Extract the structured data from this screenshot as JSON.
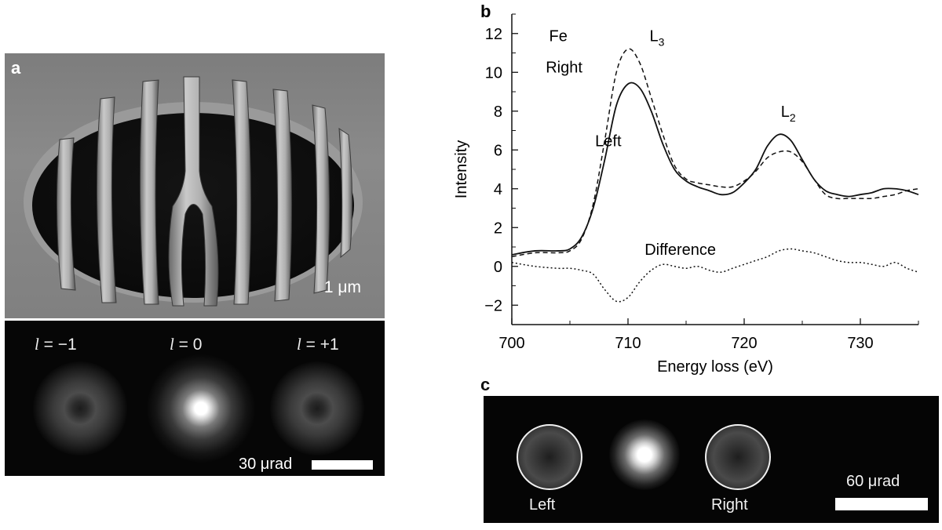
{
  "panel_letters": {
    "a": "a",
    "b": "b",
    "c": "c"
  },
  "panel_a": {
    "sem_scale_label": "1 μm",
    "orders": [
      {
        "symbol": "l",
        "label": " = −1"
      },
      {
        "symbol": "l",
        "label": " = 0"
      },
      {
        "symbol": "l",
        "label": " = +1"
      }
    ],
    "diffraction_scale_label": "30 μrad"
  },
  "panel_c": {
    "left_label": "Left",
    "right_label": "Right",
    "scale_label": "60 μrad"
  },
  "chart_data": {
    "type": "line",
    "title": "",
    "xlabel": "Energy loss (eV)",
    "ylabel": "Intensity",
    "xlim": [
      700,
      735
    ],
    "ylim": [
      -3,
      13
    ],
    "xticks": [
      700,
      710,
      720,
      730
    ],
    "yticks": [
      -2,
      0,
      2,
      4,
      6,
      8,
      10,
      12
    ],
    "grid": false,
    "legend": "none",
    "annotations": [
      {
        "text": "Fe",
        "x": 704,
        "y": 11.6
      },
      {
        "text": "L",
        "sub": "3",
        "x": 712.5,
        "y": 11.6
      },
      {
        "text": "Right",
        "x": 704.5,
        "y": 10.0
      },
      {
        "text": "Left",
        "x": 708.3,
        "y": 6.2
      },
      {
        "text": "L",
        "sub": "2",
        "x": 723.8,
        "y": 7.7
      },
      {
        "text": "Difference",
        "x": 714.5,
        "y": 0.6
      }
    ],
    "series": [
      {
        "name": "Left",
        "style": "solid",
        "x": [
          700,
          702,
          704,
          705,
          706,
          707,
          708,
          709,
          710,
          711,
          712,
          713,
          714,
          715,
          716,
          717,
          718,
          719,
          720,
          721,
          722,
          723,
          724,
          725,
          726,
          727,
          728,
          729,
          730,
          731,
          732,
          733,
          734,
          735
        ],
        "y": [
          0.6,
          0.8,
          0.8,
          0.9,
          1.5,
          3.0,
          5.5,
          8.3,
          9.4,
          9.2,
          8.0,
          6.3,
          5.0,
          4.4,
          4.1,
          3.9,
          3.7,
          3.8,
          4.3,
          5.0,
          6.2,
          6.8,
          6.5,
          5.5,
          4.5,
          3.9,
          3.7,
          3.6,
          3.7,
          3.8,
          4.0,
          4.0,
          3.9,
          3.7
        ]
      },
      {
        "name": "Right",
        "style": "dashed",
        "x": [
          700,
          702,
          704,
          705,
          706,
          707,
          708,
          709,
          710,
          711,
          712,
          713,
          714,
          715,
          716,
          717,
          718,
          719,
          720,
          721,
          722,
          723,
          724,
          725,
          726,
          727,
          728,
          729,
          730,
          731,
          732,
          733,
          734,
          735
        ],
        "y": [
          0.5,
          0.7,
          0.7,
          0.8,
          1.4,
          3.2,
          6.5,
          10.0,
          11.2,
          10.5,
          8.7,
          6.8,
          5.2,
          4.5,
          4.3,
          4.2,
          4.1,
          4.1,
          4.4,
          4.9,
          5.6,
          5.9,
          5.9,
          5.4,
          4.5,
          3.7,
          3.5,
          3.5,
          3.5,
          3.5,
          3.6,
          3.7,
          3.9,
          4.0
        ]
      },
      {
        "name": "Difference",
        "style": "dotted",
        "x": [
          700,
          702,
          704,
          705,
          706,
          707,
          708,
          709,
          710,
          711,
          712,
          713,
          714,
          715,
          716,
          717,
          718,
          719,
          720,
          721,
          722,
          723,
          724,
          725,
          726,
          727,
          728,
          729,
          730,
          731,
          732,
          733,
          734,
          735
        ],
        "y": [
          0.2,
          0.0,
          -0.1,
          -0.1,
          -0.2,
          -0.4,
          -1.2,
          -1.8,
          -1.6,
          -0.8,
          -0.2,
          0.1,
          0.0,
          -0.1,
          0.0,
          -0.2,
          -0.3,
          -0.1,
          0.1,
          0.3,
          0.5,
          0.8,
          0.9,
          0.8,
          0.7,
          0.5,
          0.3,
          0.2,
          0.2,
          0.1,
          0.0,
          0.2,
          -0.1,
          -0.3
        ]
      }
    ]
  }
}
